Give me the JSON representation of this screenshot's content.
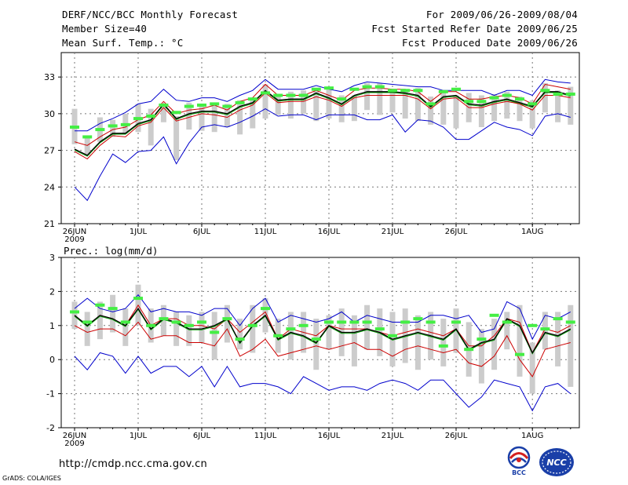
{
  "header": {
    "title": "DERF/NCC/BCC Monthly Forecast",
    "member": "Member Size=40",
    "variable": "Mean Surf. Temp.: °C",
    "period": "For 2009/06/26-2009/08/04",
    "started": "Fcst Started Refer Date 2009/06/25",
    "produced": "Fcst Produced Date 2009/06/26"
  },
  "footer": {
    "url": "http://cmdp.ncc.cma.gov.cn",
    "grads": "GrADS: COLA/IGES",
    "logo_bcc": "BCC",
    "logo_ncc": "NCC"
  },
  "colors": {
    "max_min": "#0000cc",
    "spread": "#cc0000",
    "mean": "#000000",
    "mean_shadow": "#009900",
    "climatology": "#44ee44",
    "box": "#cccccc",
    "grid": "#777777"
  },
  "chart_data": [
    {
      "type": "line",
      "title": "Mean Surf. Temp.: °C",
      "ylim": [
        21,
        35
      ],
      "yticks": [
        21,
        24,
        27,
        30,
        33
      ],
      "x_ticks": [
        {
          "day": 0,
          "label": "26JUN",
          "sub": "2009"
        },
        {
          "day": 5,
          "label": "1JUL"
        },
        {
          "day": 10,
          "label": "6JUL"
        },
        {
          "day": 15,
          "label": "11JUL"
        },
        {
          "day": 20,
          "label": "16JUL"
        },
        {
          "day": 25,
          "label": "21JUL"
        },
        {
          "day": 30,
          "label": "26JUL"
        },
        {
          "day": 36,
          "label": "1AUG"
        }
      ],
      "n_days": 40,
      "series": [
        {
          "name": "max",
          "values": [
            28.6,
            28.6,
            29.2,
            29.6,
            30.1,
            30.8,
            31.0,
            32.0,
            31.1,
            31.0,
            31.3,
            31.3,
            31.0,
            31.5,
            31.9,
            32.8,
            32.0,
            32.0,
            32.0,
            32.3,
            32.0,
            31.8,
            32.3,
            32.6,
            32.5,
            32.4,
            32.3,
            32.2,
            32.2,
            31.9,
            31.9,
            31.9,
            31.9,
            31.5,
            31.9,
            31.9,
            31.5,
            32.8,
            32.6,
            32.5
          ]
        },
        {
          "name": "upper",
          "values": [
            27.7,
            27.4,
            28.1,
            28.7,
            28.9,
            29.5,
            29.9,
            31.0,
            30.0,
            30.3,
            30.4,
            30.7,
            30.3,
            31.0,
            31.3,
            32.4,
            31.5,
            31.5,
            31.5,
            31.9,
            31.5,
            31.1,
            31.9,
            32.1,
            32.1,
            32.0,
            32.0,
            31.8,
            31.0,
            31.8,
            31.8,
            31.2,
            31.2,
            31.4,
            31.5,
            31.3,
            30.8,
            32.4,
            32.2,
            32.0
          ]
        },
        {
          "name": "mean",
          "values": [
            27.1,
            26.6,
            27.7,
            28.4,
            28.4,
            29.2,
            29.5,
            30.8,
            29.6,
            30.0,
            30.2,
            30.2,
            30.0,
            30.6,
            30.9,
            31.9,
            31.1,
            31.2,
            31.2,
            31.7,
            31.3,
            30.8,
            31.5,
            31.8,
            31.8,
            31.8,
            31.7,
            31.5,
            30.6,
            31.4,
            31.5,
            30.8,
            30.7,
            31.0,
            31.2,
            30.9,
            30.6,
            31.8,
            31.8,
            31.5
          ]
        },
        {
          "name": "lower",
          "values": [
            26.9,
            26.3,
            27.4,
            28.2,
            28.1,
            29.0,
            29.3,
            30.5,
            29.4,
            29.7,
            30.0,
            29.9,
            29.7,
            30.3,
            30.7,
            31.7,
            30.9,
            31.0,
            31.0,
            31.4,
            31.1,
            30.6,
            31.3,
            31.5,
            31.5,
            31.5,
            31.5,
            31.2,
            30.4,
            31.2,
            31.3,
            30.5,
            30.5,
            30.8,
            31.0,
            30.8,
            30.3,
            31.5,
            31.5,
            31.3
          ]
        },
        {
          "name": "min",
          "values": [
            24.0,
            22.9,
            24.9,
            26.7,
            26.0,
            26.9,
            27.0,
            28.1,
            25.9,
            27.6,
            28.9,
            29.1,
            28.9,
            29.3,
            29.8,
            30.4,
            29.8,
            29.9,
            29.9,
            29.5,
            29.9,
            29.9,
            29.9,
            29.5,
            29.5,
            29.9,
            28.5,
            29.5,
            29.4,
            28.9,
            27.9,
            27.9,
            28.6,
            29.3,
            28.9,
            28.7,
            28.2,
            29.8,
            30.0,
            29.7
          ]
        }
      ],
      "climatology": [
        28.9,
        28.1,
        28.7,
        29.0,
        29.1,
        29.6,
        29.8,
        30.7,
        30.1,
        30.6,
        30.7,
        30.8,
        30.6,
        30.9,
        31.2,
        31.7,
        31.5,
        31.5,
        31.5,
        32.0,
        32.1,
        31.2,
        32.0,
        32.2,
        32.2,
        31.9,
        31.9,
        31.9,
        30.8,
        31.8,
        32.0,
        31.0,
        31.0,
        31.3,
        31.5,
        31.2,
        30.8,
        31.9,
        31.6,
        31.6
      ],
      "boxes": [
        [
          27.5,
          30.4
        ],
        [
          26.6,
          28.2
        ],
        [
          27.7,
          29.7
        ],
        [
          28.1,
          29.5
        ],
        [
          28.4,
          30.0
        ],
        [
          28.5,
          30.8
        ],
        [
          27.4,
          30.4
        ],
        [
          29.3,
          30.7
        ],
        [
          26.2,
          29.8
        ],
        [
          28.7,
          30.9
        ],
        [
          28.6,
          30.8
        ],
        [
          28.5,
          30.9
        ],
        [
          28.9,
          30.8
        ],
        [
          28.3,
          31.1
        ],
        [
          28.8,
          31.2
        ],
        [
          29.6,
          32.4
        ],
        [
          29.9,
          31.6
        ],
        [
          29.6,
          31.8
        ],
        [
          30.0,
          31.9
        ],
        [
          29.4,
          32.1
        ],
        [
          29.6,
          32.0
        ],
        [
          29.3,
          31.5
        ],
        [
          29.4,
          31.5
        ],
        [
          30.3,
          32.5
        ],
        [
          29.9,
          32.5
        ],
        [
          30.1,
          32.0
        ],
        [
          29.6,
          32.0
        ],
        [
          29.4,
          32.1
        ],
        [
          29.1,
          31.4
        ],
        [
          29.1,
          31.9
        ],
        [
          28.8,
          31.5
        ],
        [
          29.3,
          31.7
        ],
        [
          28.9,
          31.5
        ],
        [
          29.4,
          31.6
        ],
        [
          29.6,
          31.8
        ],
        [
          29.4,
          31.4
        ],
        [
          28.8,
          31.1
        ],
        [
          30.1,
          32.5
        ],
        [
          29.3,
          31.9
        ],
        [
          29.1,
          32.2
        ]
      ]
    },
    {
      "type": "line",
      "title": "Prec.: log(mm/d)",
      "ylim": [
        -2,
        3
      ],
      "yticks": [
        -2,
        -1,
        0,
        1,
        2,
        3
      ],
      "x_ticks": [
        {
          "day": 0,
          "label": "26JUN",
          "sub": "2009"
        },
        {
          "day": 5,
          "label": "1JUL"
        },
        {
          "day": 10,
          "label": "6JUL"
        },
        {
          "day": 15,
          "label": "11JUL"
        },
        {
          "day": 20,
          "label": "16JUL"
        },
        {
          "day": 25,
          "label": "21JUL"
        },
        {
          "day": 30,
          "label": "26JUL"
        },
        {
          "day": 36,
          "label": "1AUG"
        }
      ],
      "n_days": 40,
      "series": [
        {
          "name": "max",
          "values": [
            1.5,
            1.8,
            1.5,
            1.4,
            1.5,
            1.9,
            1.4,
            1.5,
            1.4,
            1.4,
            1.3,
            1.5,
            1.5,
            1.0,
            1.5,
            1.8,
            1.1,
            1.3,
            1.2,
            1.1,
            1.2,
            1.4,
            1.1,
            1.3,
            1.2,
            1.1,
            1.1,
            1.1,
            1.3,
            1.3,
            1.2,
            1.3,
            0.8,
            0.9,
            1.7,
            1.5,
            0.6,
            1.3,
            1.2,
            1.4
          ]
        },
        {
          "name": "upper",
          "values": [
            1.3,
            1.0,
            1.3,
            1.2,
            1.0,
            1.6,
            1.0,
            1.2,
            1.2,
            1.0,
            1.0,
            0.9,
            1.2,
            0.8,
            1.1,
            1.4,
            0.6,
            0.9,
            0.8,
            0.7,
            1.0,
            0.9,
            0.9,
            0.9,
            0.8,
            0.7,
            0.8,
            0.9,
            0.8,
            0.7,
            0.9,
            0.4,
            0.4,
            0.7,
            1.2,
            1.1,
            0.2,
            0.9,
            0.8,
            1.0
          ]
        },
        {
          "name": "mean",
          "values": [
            1.3,
            1.0,
            1.3,
            1.2,
            1.0,
            1.5,
            0.9,
            1.2,
            1.1,
            0.9,
            0.9,
            1.0,
            1.2,
            0.5,
            1.0,
            1.3,
            0.6,
            0.8,
            0.7,
            0.5,
            1.0,
            0.8,
            0.8,
            0.9,
            0.8,
            0.6,
            0.7,
            0.8,
            0.7,
            0.6,
            0.9,
            0.3,
            0.5,
            0.6,
            1.2,
            1.0,
            0.2,
            0.8,
            0.7,
            0.9
          ]
        },
        {
          "name": "lower",
          "values": [
            1.0,
            0.8,
            0.9,
            0.9,
            0.7,
            1.1,
            0.6,
            0.7,
            0.7,
            0.5,
            0.5,
            0.4,
            0.9,
            0.1,
            0.3,
            0.6,
            0.1,
            0.2,
            0.3,
            0.4,
            0.3,
            0.4,
            0.5,
            0.3,
            0.3,
            0.1,
            0.3,
            0.4,
            0.3,
            0.2,
            0.3,
            -0.1,
            -0.2,
            0.1,
            0.7,
            0.0,
            -0.5,
            0.3,
            0.4,
            0.5
          ]
        },
        {
          "name": "min",
          "values": [
            0.1,
            -0.3,
            0.2,
            0.1,
            -0.4,
            0.1,
            -0.4,
            -0.2,
            -0.2,
            -0.5,
            -0.2,
            -0.8,
            -0.2,
            -0.8,
            -0.7,
            -0.7,
            -0.8,
            -1.0,
            -0.5,
            -0.7,
            -0.9,
            -0.8,
            -0.8,
            -0.9,
            -0.7,
            -0.6,
            -0.7,
            -0.9,
            -0.6,
            -0.6,
            -1.0,
            -1.4,
            -1.1,
            -0.6,
            -0.7,
            -0.8,
            -1.5,
            -0.8,
            -0.7,
            -1.0
          ]
        }
      ],
      "climatology": [
        1.4,
        1.1,
        1.6,
        1.5,
        1.1,
        1.8,
        1.0,
        1.2,
        1.1,
        1.0,
        1.1,
        0.8,
        1.2,
        0.6,
        1.0,
        1.5,
        0.7,
        0.9,
        1.0,
        0.6,
        1.1,
        1.1,
        1.1,
        1.1,
        0.9,
        0.7,
        1.1,
        1.2,
        1.1,
        0.4,
        1.1,
        0.3,
        0.6,
        1.3,
        1.1,
        0.15,
        1.0,
        0.9,
        1.2,
        1.1
      ],
      "boxes": [
        [
          0.9,
          1.7
        ],
        [
          0.4,
          1.4
        ],
        [
          0.6,
          1.7
        ],
        [
          0.8,
          1.9
        ],
        [
          0.4,
          1.5
        ],
        [
          1.0,
          2.2
        ],
        [
          0.5,
          1.5
        ],
        [
          0.7,
          1.6
        ],
        [
          0.4,
          1.4
        ],
        [
          0.4,
          1.3
        ],
        [
          0.5,
          1.4
        ],
        [
          0.0,
          1.4
        ],
        [
          0.5,
          1.6
        ],
        [
          0.3,
          1.2
        ],
        [
          0.2,
          1.6
        ],
        [
          0.8,
          1.8
        ],
        [
          0.2,
          1.2
        ],
        [
          0.0,
          1.4
        ],
        [
          0.2,
          1.4
        ],
        [
          -0.3,
          1.2
        ],
        [
          0.3,
          1.3
        ],
        [
          0.1,
          1.5
        ],
        [
          -0.2,
          1.3
        ],
        [
          0.3,
          1.6
        ],
        [
          0.1,
          1.5
        ],
        [
          -0.2,
          1.4
        ],
        [
          -0.1,
          1.5
        ],
        [
          -0.3,
          1.3
        ],
        [
          0.0,
          1.4
        ],
        [
          -0.2,
          1.2
        ],
        [
          0.2,
          1.5
        ],
        [
          -0.5,
          1.1
        ],
        [
          -0.7,
          0.9
        ],
        [
          -0.3,
          1.2
        ],
        [
          0.3,
          1.4
        ],
        [
          -0.5,
          1.6
        ],
        [
          -1.0,
          0.5
        ],
        [
          0.3,
          1.4
        ],
        [
          -0.2,
          1.4
        ],
        [
          -0.8,
          1.6
        ]
      ]
    }
  ]
}
